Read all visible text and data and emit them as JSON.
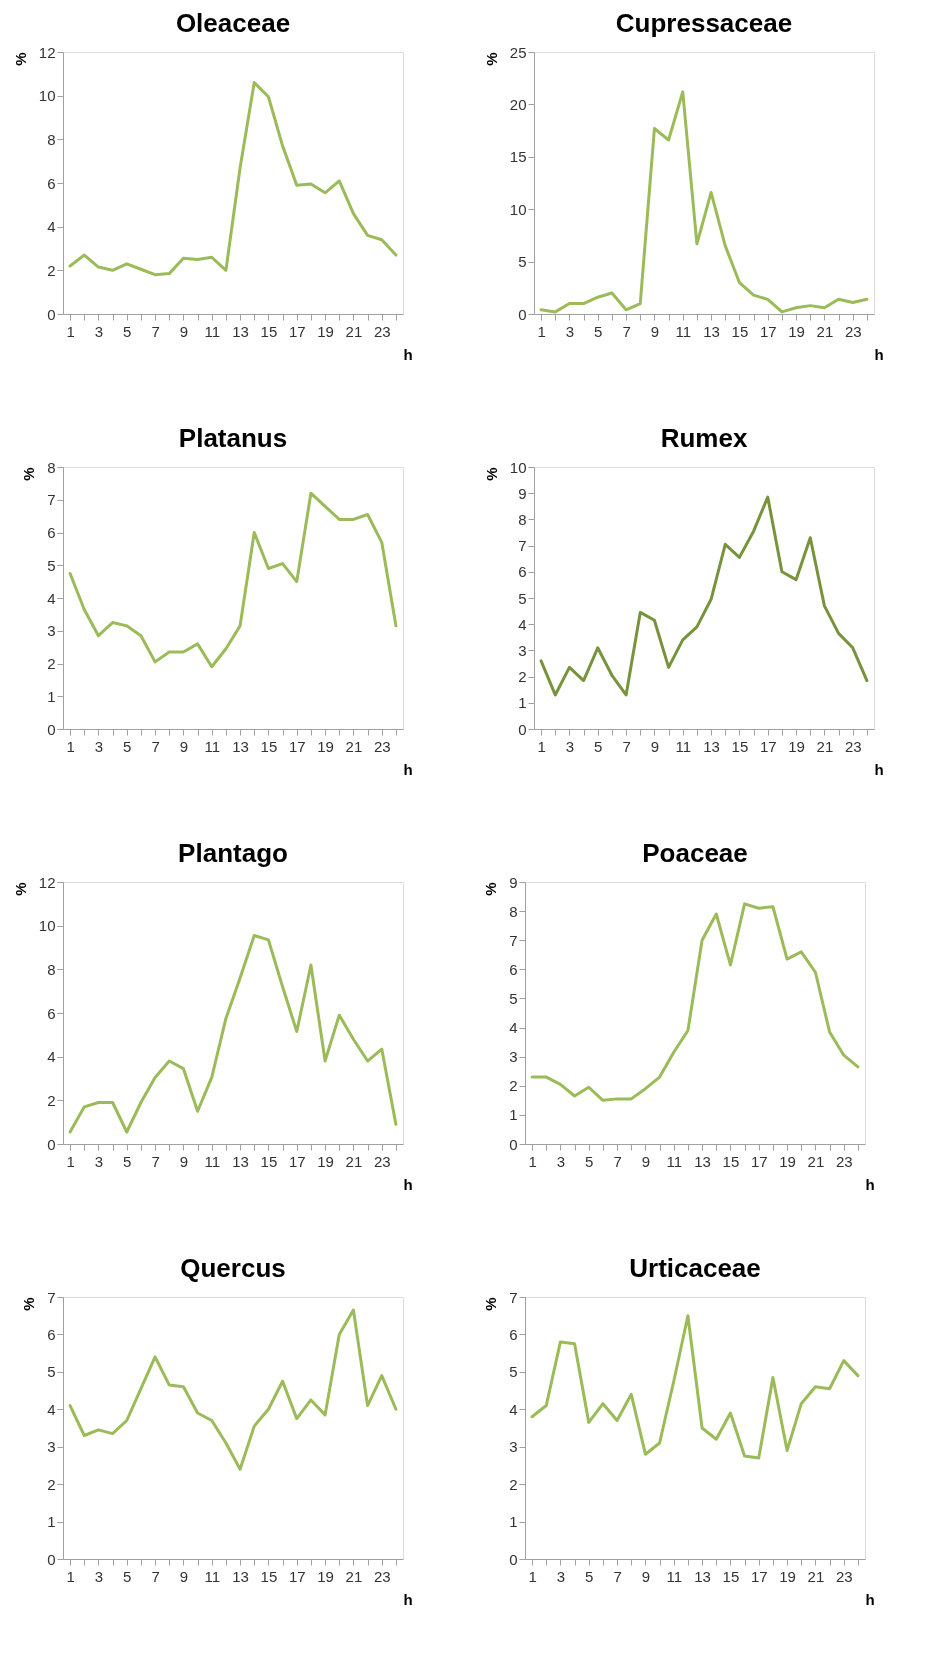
{
  "chart_data": [
    {
      "type": "line",
      "title": "Oleaceae",
      "xlabel": "h",
      "ylabel": "%",
      "grid": false,
      "x": [
        1,
        2,
        3,
        4,
        5,
        6,
        7,
        8,
        9,
        10,
        11,
        12,
        13,
        14,
        15,
        16,
        17,
        18,
        19,
        20,
        21,
        22,
        23,
        24
      ],
      "xlim": [
        0.5,
        24.5
      ],
      "xticks": [
        1,
        {
          "value": 2,
          "label": null
        },
        3,
        {
          "value": 4,
          "label": null
        },
        5,
        {
          "value": 6,
          "label": null
        },
        7,
        {
          "value": 8,
          "label": null
        },
        9,
        {
          "value": 10,
          "label": null
        },
        11,
        {
          "value": 12,
          "label": null
        },
        13,
        {
          "value": 14,
          "label": null
        },
        15,
        {
          "value": 16,
          "label": null
        },
        17,
        {
          "value": 18,
          "label": null
        },
        19,
        {
          "value": 20,
          "label": null
        },
        21,
        {
          "value": 22,
          "label": null
        },
        23,
        {
          "value": 24,
          "label": null
        }
      ],
      "series": [
        {
          "color": "#9bbb59",
          "values": [
            2.2,
            2.7,
            2.15,
            2.0,
            2.3,
            2.05,
            1.8,
            1.85,
            2.55,
            2.5,
            2.6,
            2.0,
            6.7,
            10.6,
            9.95,
            7.7,
            5.9,
            5.95,
            5.55,
            6.1,
            4.6,
            3.6,
            3.4,
            2.7
          ]
        }
      ],
      "ylim": [
        0,
        12
      ],
      "yticks": [
        0,
        2,
        4,
        6,
        8,
        10,
        12
      ]
    },
    {
      "type": "line",
      "title": "Cupressaceae",
      "xlabel": "h",
      "ylabel": "%",
      "grid": false,
      "x": [
        1,
        2,
        3,
        4,
        5,
        6,
        7,
        8,
        9,
        10,
        11,
        12,
        13,
        14,
        15,
        16,
        17,
        18,
        19,
        20,
        21,
        22,
        23,
        24
      ],
      "xlim": [
        0.5,
        24.5
      ],
      "xticks": [
        1,
        {
          "value": 2,
          "label": null
        },
        3,
        {
          "value": 4,
          "label": null
        },
        5,
        {
          "value": 6,
          "label": null
        },
        7,
        {
          "value": 8,
          "label": null
        },
        9,
        {
          "value": 10,
          "label": null
        },
        11,
        {
          "value": 12,
          "label": null
        },
        13,
        {
          "value": 14,
          "label": null
        },
        15,
        {
          "value": 16,
          "label": null
        },
        17,
        {
          "value": 18,
          "label": null
        },
        19,
        {
          "value": 20,
          "label": null
        },
        21,
        {
          "value": 22,
          "label": null
        },
        23,
        {
          "value": 24,
          "label": null
        }
      ],
      "series": [
        {
          "color": "#9bbb59",
          "values": [
            0.4,
            0.2,
            1.0,
            1.0,
            1.6,
            2.0,
            0.4,
            1.0,
            17.7,
            16.6,
            21.2,
            6.7,
            11.6,
            6.5,
            3.0,
            1.8,
            1.4,
            0.2,
            0.6,
            0.8,
            0.6,
            1.4,
            1.1,
            1.4
          ]
        }
      ],
      "ylim": [
        0,
        25
      ],
      "yticks": [
        0,
        5,
        10,
        15,
        20,
        25
      ]
    },
    {
      "type": "line",
      "title": "Platanus",
      "xlabel": "h",
      "ylabel": "%",
      "grid": false,
      "x": [
        1,
        2,
        3,
        4,
        5,
        6,
        7,
        8,
        9,
        10,
        11,
        12,
        13,
        14,
        15,
        16,
        17,
        18,
        19,
        20,
        21,
        22,
        23,
        24
      ],
      "xlim": [
        0.5,
        24.5
      ],
      "xticks": [
        1,
        {
          "value": 2,
          "label": null
        },
        3,
        {
          "value": 4,
          "label": null
        },
        5,
        {
          "value": 6,
          "label": null
        },
        7,
        {
          "value": 8,
          "label": null
        },
        9,
        {
          "value": 10,
          "label": null
        },
        11,
        {
          "value": 12,
          "label": null
        },
        13,
        {
          "value": 14,
          "label": null
        },
        15,
        {
          "value": 16,
          "label": null
        },
        17,
        {
          "value": 18,
          "label": null
        },
        19,
        {
          "value": 20,
          "label": null
        },
        21,
        {
          "value": 22,
          "label": null
        },
        23,
        {
          "value": 24,
          "label": null
        }
      ],
      "series": [
        {
          "color": "#9bbb59",
          "values": [
            4.75,
            3.65,
            2.85,
            3.25,
            3.15,
            2.85,
            2.05,
            2.35,
            2.35,
            2.6,
            1.9,
            2.45,
            3.15,
            6.0,
            4.9,
            5.05,
            4.5,
            7.2,
            6.8,
            6.4,
            6.4,
            6.55,
            5.7,
            3.15
          ]
        }
      ],
      "ylim": [
        0,
        8
      ],
      "yticks": [
        0,
        1,
        2,
        3,
        4,
        5,
        6,
        7,
        8
      ]
    },
    {
      "type": "line",
      "title": "Rumex",
      "xlabel": "h",
      "ylabel": "%",
      "grid": false,
      "x": [
        1,
        2,
        3,
        4,
        5,
        6,
        7,
        8,
        9,
        10,
        11,
        12,
        13,
        14,
        15,
        16,
        17,
        18,
        19,
        20,
        21,
        22,
        23,
        24
      ],
      "xlim": [
        0.5,
        24.5
      ],
      "xticks": [
        1,
        {
          "value": 2,
          "label": null
        },
        3,
        {
          "value": 4,
          "label": null
        },
        5,
        {
          "value": 6,
          "label": null
        },
        7,
        {
          "value": 8,
          "label": null
        },
        9,
        {
          "value": 10,
          "label": null
        },
        11,
        {
          "value": 12,
          "label": null
        },
        13,
        {
          "value": 14,
          "label": null
        },
        15,
        {
          "value": 16,
          "label": null
        },
        17,
        {
          "value": 18,
          "label": null
        },
        19,
        {
          "value": 20,
          "label": null
        },
        21,
        {
          "value": 22,
          "label": null
        },
        23,
        {
          "value": 24,
          "label": null
        }
      ],
      "series": [
        {
          "color": "#77933c",
          "values": [
            2.6,
            1.3,
            2.35,
            1.85,
            3.1,
            2.05,
            1.3,
            4.45,
            4.15,
            2.35,
            3.4,
            3.9,
            4.95,
            7.05,
            6.55,
            7.55,
            8.85,
            6.0,
            5.7,
            7.3,
            4.7,
            3.65,
            3.1,
            1.85
          ]
        }
      ],
      "ylim": [
        0,
        10
      ],
      "yticks": [
        0,
        1,
        2,
        3,
        4,
        5,
        6,
        7,
        8,
        9,
        10
      ]
    },
    {
      "type": "line",
      "title": "Plantago",
      "xlabel": "h",
      "ylabel": "%",
      "grid": false,
      "x": [
        1,
        2,
        3,
        4,
        5,
        6,
        7,
        8,
        9,
        10,
        11,
        12,
        13,
        14,
        15,
        16,
        17,
        18,
        19,
        20,
        21,
        22,
        23,
        24
      ],
      "xlim": [
        0.5,
        24.5
      ],
      "xticks": [
        1,
        {
          "value": 2,
          "label": null
        },
        3,
        {
          "value": 4,
          "label": null
        },
        5,
        {
          "value": 6,
          "label": null
        },
        7,
        {
          "value": 8,
          "label": null
        },
        9,
        {
          "value": 10,
          "label": null
        },
        11,
        {
          "value": 12,
          "label": null
        },
        13,
        {
          "value": 14,
          "label": null
        },
        15,
        {
          "value": 16,
          "label": null
        },
        17,
        {
          "value": 18,
          "label": null
        },
        19,
        {
          "value": 20,
          "label": null
        },
        21,
        {
          "value": 22,
          "label": null
        },
        23,
        {
          "value": 24,
          "label": null
        }
      ],
      "series": [
        {
          "color": "#9bbb59",
          "values": [
            0.55,
            1.7,
            1.9,
            1.9,
            0.55,
            1.9,
            3.05,
            3.8,
            3.45,
            1.5,
            3.05,
            5.75,
            7.6,
            9.55,
            9.35,
            7.2,
            5.15,
            8.2,
            3.8,
            5.9,
            4.8,
            3.8,
            4.35,
            0.9
          ]
        }
      ],
      "ylim": [
        0,
        12
      ],
      "yticks": [
        0,
        2,
        4,
        6,
        8,
        10,
        12
      ]
    },
    {
      "type": "line",
      "title": "Poaceae",
      "xlabel": "h",
      "ylabel": "%",
      "grid": false,
      "x": [
        1,
        2,
        3,
        4,
        5,
        6,
        7,
        8,
        9,
        10,
        11,
        12,
        13,
        14,
        15,
        16,
        17,
        18,
        19,
        20,
        21,
        22,
        23,
        24
      ],
      "xlim": [
        0.5,
        24.5
      ],
      "xticks": [
        1,
        {
          "value": 2,
          "label": null
        },
        3,
        {
          "value": 4,
          "label": null
        },
        5,
        {
          "value": 6,
          "label": null
        },
        7,
        {
          "value": 8,
          "label": null
        },
        9,
        {
          "value": 10,
          "label": null
        },
        11,
        {
          "value": 12,
          "label": null
        },
        13,
        {
          "value": 14,
          "label": null
        },
        15,
        {
          "value": 16,
          "label": null
        },
        17,
        {
          "value": 18,
          "label": null
        },
        19,
        {
          "value": 20,
          "label": null
        },
        21,
        {
          "value": 22,
          "label": null
        },
        23,
        {
          "value": 24,
          "label": null
        }
      ],
      "series": [
        {
          "color": "#9bbb59",
          "values": [
            2.3,
            2.3,
            2.05,
            1.65,
            1.95,
            1.5,
            1.55,
            1.55,
            1.9,
            2.3,
            3.15,
            3.9,
            7.0,
            7.9,
            6.15,
            8.25,
            8.1,
            8.15,
            6.35,
            6.6,
            5.9,
            3.85,
            3.05,
            2.65
          ]
        }
      ],
      "ylim": [
        0,
        9
      ],
      "yticks": [
        0,
        1,
        2,
        3,
        4,
        5,
        6,
        7,
        8,
        9
      ]
    },
    {
      "type": "line",
      "title": "Quercus",
      "xlabel": "h",
      "ylabel": "%",
      "grid": false,
      "x": [
        1,
        2,
        3,
        4,
        5,
        6,
        7,
        8,
        9,
        10,
        11,
        12,
        13,
        14,
        15,
        16,
        17,
        18,
        19,
        20,
        21,
        22,
        23,
        24
      ],
      "xlim": [
        0.5,
        24.5
      ],
      "xticks": [
        1,
        {
          "value": 2,
          "label": null
        },
        3,
        {
          "value": 4,
          "label": null
        },
        5,
        {
          "value": 6,
          "label": null
        },
        7,
        {
          "value": 8,
          "label": null
        },
        9,
        {
          "value": 10,
          "label": null
        },
        11,
        {
          "value": 12,
          "label": null
        },
        13,
        {
          "value": 14,
          "label": null
        },
        15,
        {
          "value": 16,
          "label": null
        },
        17,
        {
          "value": 18,
          "label": null
        },
        19,
        {
          "value": 20,
          "label": null
        },
        21,
        {
          "value": 22,
          "label": null
        },
        23,
        {
          "value": 24,
          "label": null
        }
      ],
      "series": [
        {
          "color": "#9bbb59",
          "values": [
            4.1,
            3.3,
            3.45,
            3.35,
            3.7,
            4.55,
            5.4,
            4.65,
            4.6,
            3.9,
            3.7,
            3.1,
            2.4,
            3.55,
            4.0,
            4.75,
            3.75,
            4.25,
            3.85,
            6.0,
            6.65,
            4.1,
            4.9,
            4.0
          ]
        }
      ],
      "ylim": [
        0,
        7
      ],
      "yticks": [
        0,
        1,
        2,
        3,
        4,
        5,
        6,
        7
      ]
    },
    {
      "type": "line",
      "title": "Urticaceae",
      "xlabel": "h",
      "ylabel": "%",
      "grid": false,
      "x": [
        1,
        2,
        3,
        4,
        5,
        6,
        7,
        8,
        9,
        10,
        11,
        12,
        13,
        14,
        15,
        16,
        17,
        18,
        19,
        20,
        21,
        22,
        23,
        24
      ],
      "xlim": [
        0.5,
        24.5
      ],
      "xticks": [
        1,
        {
          "value": 2,
          "label": null
        },
        3,
        {
          "value": 4,
          "label": null
        },
        5,
        {
          "value": 6,
          "label": null
        },
        7,
        {
          "value": 8,
          "label": null
        },
        9,
        {
          "value": 10,
          "label": null
        },
        11,
        {
          "value": 12,
          "label": null
        },
        13,
        {
          "value": 14,
          "label": null
        },
        15,
        {
          "value": 16,
          "label": null
        },
        17,
        {
          "value": 18,
          "label": null
        },
        19,
        {
          "value": 20,
          "label": null
        },
        21,
        {
          "value": 22,
          "label": null
        },
        23,
        {
          "value": 24,
          "label": null
        }
      ],
      "series": [
        {
          "color": "#9bbb59",
          "values": [
            3.8,
            4.1,
            5.8,
            5.75,
            3.65,
            4.15,
            3.7,
            4.4,
            2.8,
            3.1,
            4.75,
            6.5,
            3.5,
            3.2,
            3.9,
            2.75,
            2.7,
            4.85,
            2.9,
            4.15,
            4.6,
            4.55,
            5.3,
            4.9
          ]
        }
      ],
      "ylim": [
        0,
        7
      ],
      "yticks": [
        0,
        1,
        2,
        3,
        4,
        5,
        6,
        7
      ]
    }
  ]
}
